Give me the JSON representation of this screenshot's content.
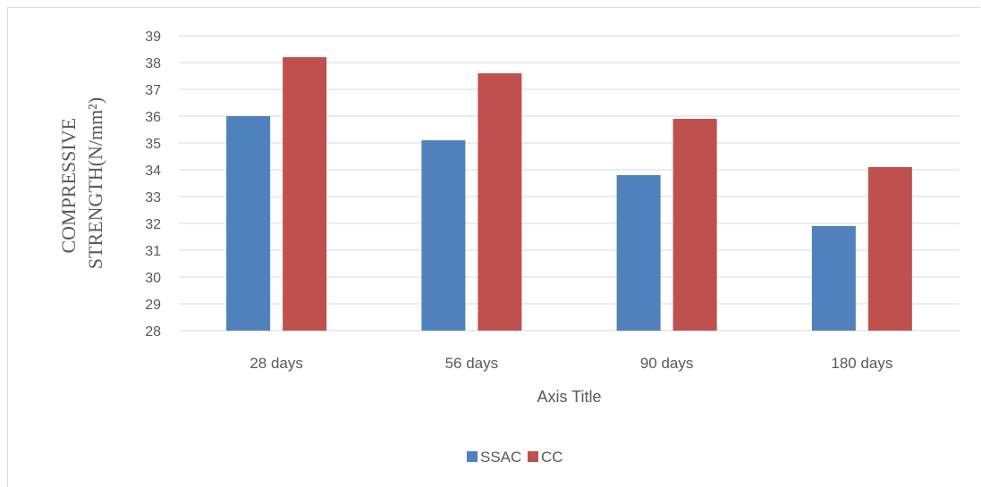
{
  "chart_data": {
    "type": "bar",
    "categories": [
      "28 days",
      "56 days",
      "90 days",
      "180 days"
    ],
    "series": [
      {
        "name": "SSAC",
        "color": "#4f81bd",
        "values": [
          36.0,
          35.1,
          33.8,
          31.9
        ]
      },
      {
        "name": "CC",
        "color": "#c0504d",
        "values": [
          38.2,
          37.6,
          35.9,
          34.1
        ]
      }
    ],
    "ylim": [
      28,
      39
    ],
    "yticks": [
      28,
      29,
      30,
      31,
      32,
      33,
      34,
      35,
      36,
      37,
      38,
      39
    ],
    "ylabel_lines": [
      "COMPRESSIVE",
      "STRENGTH(N/mm²)"
    ],
    "xlabel": "Axis Title",
    "grid": true,
    "gridline_color": "#d9d9d9",
    "legend_position": "bottom"
  }
}
